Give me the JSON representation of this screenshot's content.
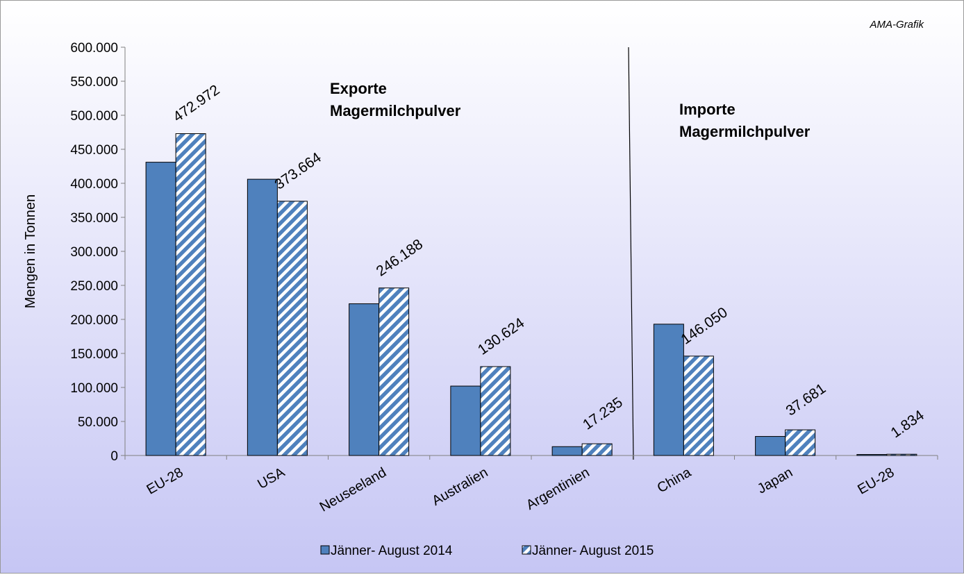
{
  "chart_data": {
    "type": "bar",
    "credit": "AMA-Grafik",
    "y_label": "Mengen in Tonnen",
    "annotations": [
      "Exporte\nMagermilchpulver",
      "Importe\nMagermilchpulver"
    ],
    "categories": [
      "EU-28",
      "USA",
      "Neuseeland",
      "Australien",
      "Argentinien",
      "China",
      "Japan",
      "EU-28"
    ],
    "series": [
      {
        "name": "Jänner- August 2014",
        "color": "#4f81bd",
        "hatch": false,
        "values": [
          431000,
          406000,
          223000,
          102000,
          13000,
          193000,
          28000,
          1500
        ]
      },
      {
        "name": "Jänner- August 2015",
        "color": "#4f81bd",
        "hatch": true,
        "values": [
          472972,
          373664,
          246188,
          130624,
          17235,
          146050,
          37681,
          1834
        ],
        "value_labels": [
          "472.972",
          "373.664",
          "246.188",
          "130.624",
          "17.235",
          "146.050",
          "37.681",
          "1.834"
        ]
      }
    ],
    "ylim": [
      0,
      600000
    ],
    "yticks": [
      0,
      {
        "value": 50000,
        "label": "50.000"
      },
      {
        "value": 100000,
        "label": "100.000"
      },
      {
        "value": 150000,
        "label": "150.000"
      },
      {
        "value": 200000,
        "label": "200.000"
      },
      {
        "value": 250000,
        "label": "250.000"
      },
      {
        "value": 300000,
        "label": "300.000"
      },
      {
        "value": 350000,
        "label": "350.000"
      },
      {
        "value": 400000,
        "label": "400.000"
      },
      {
        "value": 450000,
        "label": "450.000"
      },
      {
        "value": 500000,
        "label": "500.000"
      },
      {
        "value": 550000,
        "label": "550.000"
      },
      {
        "value": 600000,
        "label": "600.000"
      }
    ],
    "legend": "bottom"
  }
}
